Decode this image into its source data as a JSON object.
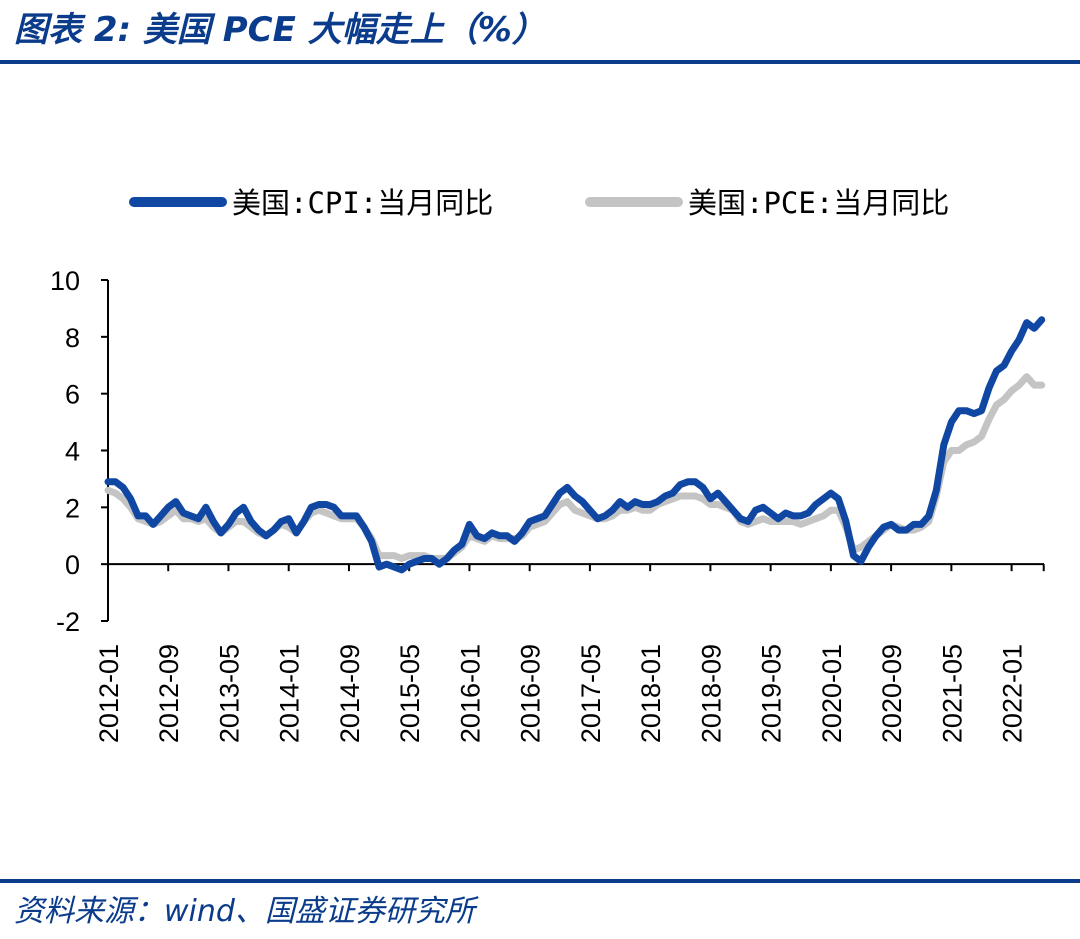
{
  "header": {
    "title": "图表 2: 美国 PCE 大幅走上（%）"
  },
  "footer": {
    "source": "资料来源：wind、国盛证券研究所"
  },
  "colors": {
    "brand": "#0b3c8c",
    "cpi": "#0f47a3",
    "pce": "#c4c4c4"
  },
  "chart_data": {
    "type": "line",
    "title": "",
    "xlabel": "",
    "ylabel": "",
    "ylim": [
      -2,
      10
    ],
    "yticks": [
      "10",
      "8",
      "6",
      "4",
      "2",
      "0",
      "-2"
    ],
    "xticks": [
      "2012-01",
      "2012-09",
      "2013-05",
      "2014-01",
      "2014-09",
      "2015-05",
      "2016-01",
      "2016-09",
      "2017-05",
      "2018-01",
      "2018-09",
      "2019-05",
      "2020-01",
      "2020-09",
      "2021-05",
      "2022-01"
    ],
    "legend": "top",
    "grid": false,
    "x_start": "2012-01",
    "series": [
      {
        "name": "美国:CPI:当月同比",
        "values": [
          2.9,
          2.9,
          2.7,
          2.3,
          1.7,
          1.7,
          1.4,
          1.7,
          2.0,
          2.2,
          1.8,
          1.7,
          1.6,
          2.0,
          1.5,
          1.1,
          1.4,
          1.8,
          2.0,
          1.5,
          1.2,
          1.0,
          1.2,
          1.5,
          1.6,
          1.1,
          1.5,
          2.0,
          2.1,
          2.1,
          2.0,
          1.7,
          1.7,
          1.7,
          1.3,
          0.8,
          -0.1,
          0.0,
          -0.1,
          -0.2,
          0.0,
          0.1,
          0.2,
          0.2,
          0.0,
          0.2,
          0.5,
          0.7,
          1.4,
          1.0,
          0.9,
          1.1,
          1.0,
          1.0,
          0.8,
          1.1,
          1.5,
          1.6,
          1.7,
          2.1,
          2.5,
          2.7,
          2.4,
          2.2,
          1.9,
          1.6,
          1.7,
          1.9,
          2.2,
          2.0,
          2.2,
          2.1,
          2.1,
          2.2,
          2.4,
          2.5,
          2.8,
          2.9,
          2.9,
          2.7,
          2.3,
          2.5,
          2.2,
          1.9,
          1.6,
          1.5,
          1.9,
          2.0,
          1.8,
          1.6,
          1.8,
          1.7,
          1.7,
          1.8,
          2.1,
          2.3,
          2.5,
          2.3,
          1.5,
          0.3,
          0.1,
          0.6,
          1.0,
          1.3,
          1.4,
          1.2,
          1.2,
          1.4,
          1.4,
          1.7,
          2.6,
          4.2,
          5.0,
          5.4,
          5.4,
          5.3,
          5.4,
          6.2,
          6.8,
          7.0,
          7.5,
          7.9,
          8.5,
          8.3,
          8.6
        ]
      },
      {
        "name": "美国:PCE:当月同比",
        "values": [
          2.6,
          2.5,
          2.3,
          2.0,
          1.6,
          1.5,
          1.4,
          1.5,
          1.7,
          1.9,
          1.6,
          1.6,
          1.5,
          1.6,
          1.3,
          1.1,
          1.3,
          1.5,
          1.5,
          1.3,
          1.1,
          1.0,
          1.2,
          1.4,
          1.3,
          1.1,
          1.5,
          1.8,
          1.9,
          1.8,
          1.7,
          1.6,
          1.6,
          1.6,
          1.3,
          0.9,
          0.3,
          0.3,
          0.3,
          0.2,
          0.3,
          0.3,
          0.3,
          0.2,
          0.2,
          0.2,
          0.4,
          0.6,
          1.0,
          0.9,
          0.8,
          1.0,
          0.9,
          0.9,
          0.9,
          1.0,
          1.3,
          1.4,
          1.5,
          1.8,
          2.1,
          2.2,
          1.9,
          1.8,
          1.7,
          1.6,
          1.6,
          1.7,
          1.9,
          1.9,
          2.0,
          1.9,
          1.9,
          2.1,
          2.2,
          2.3,
          2.4,
          2.4,
          2.4,
          2.3,
          2.1,
          2.1,
          2.0,
          1.9,
          1.5,
          1.4,
          1.5,
          1.6,
          1.5,
          1.5,
          1.5,
          1.5,
          1.4,
          1.5,
          1.6,
          1.7,
          1.9,
          1.9,
          1.3,
          0.5,
          0.6,
          0.8,
          1.0,
          1.2,
          1.4,
          1.3,
          1.2,
          1.2,
          1.3,
          1.5,
          2.4,
          3.6,
          4.0,
          4.0,
          4.2,
          4.3,
          4.5,
          5.1,
          5.6,
          5.8,
          6.1,
          6.3,
          6.6,
          6.3,
          6.3
        ]
      }
    ]
  }
}
